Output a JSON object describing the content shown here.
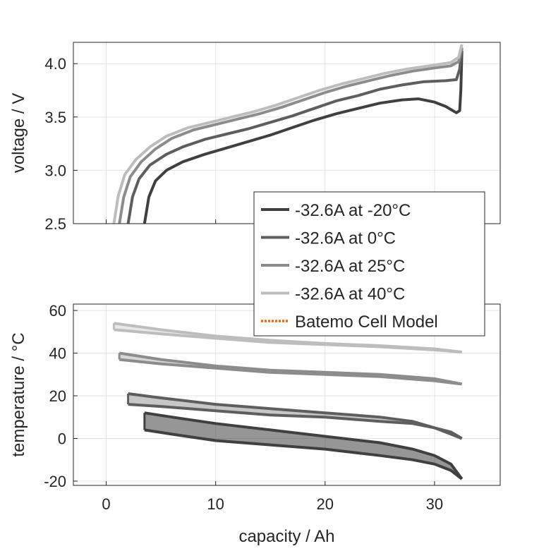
{
  "chart_data": [
    {
      "type": "line",
      "panel": "voltage",
      "title": "",
      "xlabel": "",
      "ylabel": "voltage / V",
      "xlim": [
        -3,
        36
      ],
      "ylim": [
        2.5,
        4.2
      ],
      "yticks": [
        "2.5",
        "3.0",
        "3.5",
        "4.0"
      ],
      "grid": true,
      "series": [
        {
          "name": "-32.6A at -20°C",
          "color": "#404040",
          "x": [
            3.5,
            3.9,
            4.5,
            5.5,
            7.0,
            9.0,
            11.0,
            13.0,
            15.0,
            17.0,
            19.0,
            21.0,
            23.0,
            25.0,
            27.0,
            28.5,
            30.0,
            31.0,
            32.0,
            32.3,
            32.4,
            32.5
          ],
          "y": [
            2.5,
            2.75,
            2.9,
            3.0,
            3.08,
            3.15,
            3.21,
            3.27,
            3.33,
            3.4,
            3.47,
            3.53,
            3.58,
            3.63,
            3.66,
            3.67,
            3.64,
            3.6,
            3.54,
            3.56,
            3.75,
            4.12
          ]
        },
        {
          "name": "-32.6A at 0°C",
          "color": "#5e5e5e",
          "x": [
            2.0,
            2.4,
            3.0,
            4.0,
            5.5,
            7.0,
            9.0,
            11.0,
            13.0,
            15.0,
            17.0,
            19.0,
            21.0,
            23.0,
            25.0,
            27.0,
            29.0,
            31.0,
            32.0,
            32.3,
            32.5
          ],
          "y": [
            2.5,
            2.75,
            2.92,
            3.05,
            3.15,
            3.22,
            3.29,
            3.34,
            3.39,
            3.45,
            3.51,
            3.58,
            3.65,
            3.7,
            3.76,
            3.8,
            3.83,
            3.84,
            3.85,
            3.95,
            4.15
          ]
        },
        {
          "name": "-32.6A at 25°C",
          "color": "#8c8c8c",
          "x": [
            1.2,
            1.6,
            2.2,
            3.2,
            4.5,
            6.0,
            8.0,
            10.0,
            12.0,
            14.0,
            16.0,
            18.0,
            20.0,
            22.0,
            24.0,
            26.0,
            28.0,
            30.0,
            31.5,
            32.2,
            32.5
          ],
          "y": [
            2.5,
            2.75,
            2.94,
            3.08,
            3.2,
            3.3,
            3.38,
            3.43,
            3.48,
            3.53,
            3.59,
            3.66,
            3.73,
            3.79,
            3.84,
            3.89,
            3.93,
            3.96,
            3.98,
            4.02,
            4.15
          ]
        },
        {
          "name": "-32.6A at 40°C",
          "color": "#bdbdbd",
          "x": [
            0.7,
            1.1,
            1.7,
            2.7,
            4.0,
            5.5,
            7.5,
            9.5,
            11.5,
            13.5,
            15.5,
            17.5,
            19.5,
            21.5,
            23.5,
            25.5,
            27.5,
            29.5,
            31.5,
            32.2,
            32.5
          ],
          "y": [
            2.5,
            2.76,
            2.96,
            3.1,
            3.22,
            3.32,
            3.4,
            3.45,
            3.5,
            3.55,
            3.61,
            3.68,
            3.75,
            3.81,
            3.86,
            3.91,
            3.95,
            3.98,
            4.01,
            4.06,
            4.18
          ]
        }
      ]
    },
    {
      "type": "area",
      "panel": "temperature",
      "title": "",
      "xlabel": "capacity / Ah",
      "ylabel": "temperature / °C",
      "xlim": [
        -3,
        36
      ],
      "ylim": [
        -22,
        63
      ],
      "xticks": [
        "0",
        "10",
        "20",
        "30"
      ],
      "yticks": [
        "-20",
        "0",
        "20",
        "40",
        "60"
      ],
      "grid": true,
      "series": [
        {
          "name": "-32.6A at -20°C",
          "color": "#404040",
          "x": [
            3.5,
            6,
            10,
            15,
            20,
            25,
            28,
            30,
            31.5,
            32.5
          ],
          "upper": [
            12,
            10,
            7,
            4,
            1,
            -2,
            -5,
            -8,
            -12,
            -19
          ],
          "lower": [
            4,
            2,
            -1,
            -3,
            -5,
            -8,
            -10,
            -12,
            -15,
            -19
          ]
        },
        {
          "name": "-32.6A at 0°C",
          "color": "#5e5e5e",
          "x": [
            2.0,
            5,
            10,
            15,
            20,
            25,
            28,
            30,
            31.5,
            32.5
          ],
          "upper": [
            21,
            19,
            16,
            14,
            12,
            10,
            8,
            5,
            3,
            0
          ],
          "lower": [
            16,
            15,
            13,
            11,
            10,
            8,
            7,
            5,
            2,
            0
          ]
        },
        {
          "name": "-32.6A at 25°C",
          "color": "#8c8c8c",
          "x": [
            1.2,
            5,
            10,
            15,
            20,
            25,
            30,
            32.5
          ],
          "upper": [
            40,
            37,
            34,
            32,
            31,
            30,
            28,
            25.5
          ],
          "lower": [
            37,
            35,
            33,
            31,
            30,
            29,
            27,
            25.5
          ]
        },
        {
          "name": "-32.6A at 40°C",
          "color": "#bdbdbd",
          "x": [
            0.7,
            5,
            10,
            15,
            20,
            25,
            30,
            32.5
          ],
          "upper": [
            54,
            51,
            48,
            46,
            44.5,
            43.5,
            42,
            40.5
          ],
          "lower": [
            51,
            49,
            47,
            45,
            44,
            43,
            41.5,
            40.5
          ]
        }
      ]
    }
  ],
  "legend": {
    "placement": "right, between panels",
    "entries": [
      {
        "label": "-32.6A at -20°C",
        "color": "#404040",
        "style": "solid"
      },
      {
        "label": "-32.6A at 0°C",
        "color": "#5e5e5e",
        "style": "solid"
      },
      {
        "label": "-32.6A at 25°C",
        "color": "#8c8c8c",
        "style": "solid"
      },
      {
        "label": "-32.6A at 40°C",
        "color": "#bdbdbd",
        "style": "solid"
      },
      {
        "label": "Batemo Cell Model",
        "color": "#e8651a",
        "style": "dotted"
      }
    ]
  },
  "colors": {
    "axis": "#262626",
    "grid": "#e3e3e3",
    "background": "#ffffff"
  }
}
